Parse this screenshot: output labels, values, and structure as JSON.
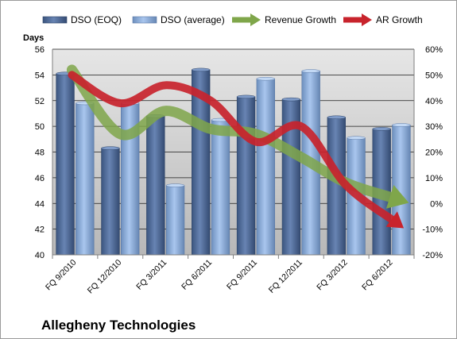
{
  "chart_data": {
    "type": "bar",
    "title": "Allegheny Technologies",
    "ylabel": "Days",
    "categories": [
      "FQ 9/2010",
      "FQ 12/2010",
      "FQ 3/2011",
      "FQ 6/2011",
      "FQ 9/2011",
      "FQ 12/2011",
      "FQ 3/2012",
      "FQ 6/2012"
    ],
    "ylim": [
      40,
      56
    ],
    "y_ticks": [
      "40",
      "42",
      "44",
      "46",
      "48",
      "50",
      "52",
      "54",
      "56"
    ],
    "y2lim": [
      -20,
      60
    ],
    "y2_ticks": [
      "-20%",
      "-10%",
      "0%",
      "10%",
      "20%",
      "30%",
      "40%",
      "50%",
      "60%"
    ],
    "grid": true,
    "legend_position": "top",
    "series": [
      {
        "name": "DSO (EOQ)",
        "kind": "bar",
        "axis": "left",
        "color": "#4F6C9E",
        "values": [
          54.1,
          48.3,
          50.8,
          54.4,
          52.3,
          52.1,
          50.7,
          49.8
        ]
      },
      {
        "name": "DSO (average)",
        "kind": "bar",
        "axis": "left",
        "color": "#8FB4E3",
        "values": [
          51.8,
          51.8,
          45.4,
          50.5,
          53.7,
          54.3,
          49.1,
          50.1
        ]
      },
      {
        "name": "Revenue Growth",
        "kind": "arrow-line",
        "axis": "right",
        "color": "#7FA64A",
        "values": [
          52,
          27,
          36,
          29,
          27,
          18,
          8,
          2
        ]
      },
      {
        "name": "AR Growth",
        "kind": "arrow-line",
        "axis": "right",
        "color": "#C8232C",
        "values": [
          50,
          39,
          46,
          40,
          24,
          30,
          7,
          -7
        ]
      }
    ]
  }
}
